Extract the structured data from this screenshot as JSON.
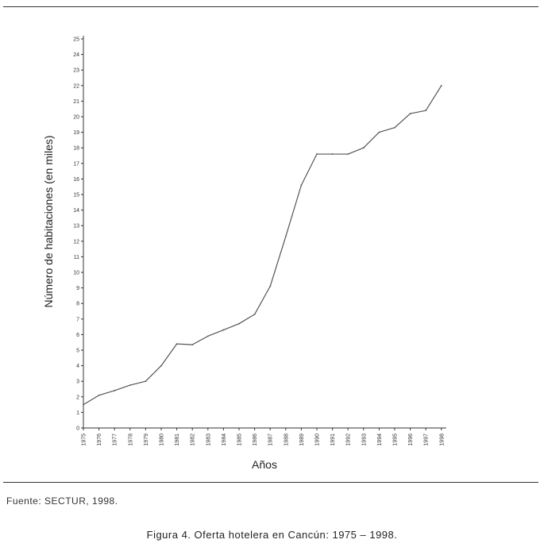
{
  "chart_data": {
    "type": "line",
    "x": [
      "1975",
      "1976",
      "1977",
      "1978",
      "1979",
      "1980",
      "1981",
      "1982",
      "1983",
      "1984",
      "1985",
      "1986",
      "1987",
      "1988",
      "1989",
      "1990",
      "1991",
      "1992",
      "1993",
      "1994",
      "1995",
      "1996",
      "1997",
      "1998"
    ],
    "series": [
      {
        "values": [
          1.5,
          2.1,
          2.4,
          2.75,
          3.0,
          4.0,
          5.4,
          5.35,
          5.9,
          6.3,
          6.7,
          7.3,
          9.1,
          12.3,
          15.6,
          17.6,
          17.6,
          17.6,
          18.0,
          19.0,
          19.3,
          20.2,
          20.4,
          22.0
        ]
      }
    ],
    "xlabel": "Años",
    "ylabel": "Número de habitaciones (en miles)",
    "yticks": [
      "0",
      "1",
      "2",
      "3",
      "4",
      "5",
      "6",
      "7",
      "8",
      "9",
      "10",
      "11",
      "12",
      "13",
      "14",
      "15",
      "16",
      "17",
      "18",
      "19",
      "20",
      "21",
      "22",
      "23",
      "24",
      "25"
    ],
    "ylim": [
      0,
      25
    ],
    "grid": false,
    "line_color": "#555555"
  },
  "source_text": "Fuente: SECTUR, 1998.",
  "caption_text": "Figura 4. Oferta hotelera en Cancún: 1975 – 1998."
}
